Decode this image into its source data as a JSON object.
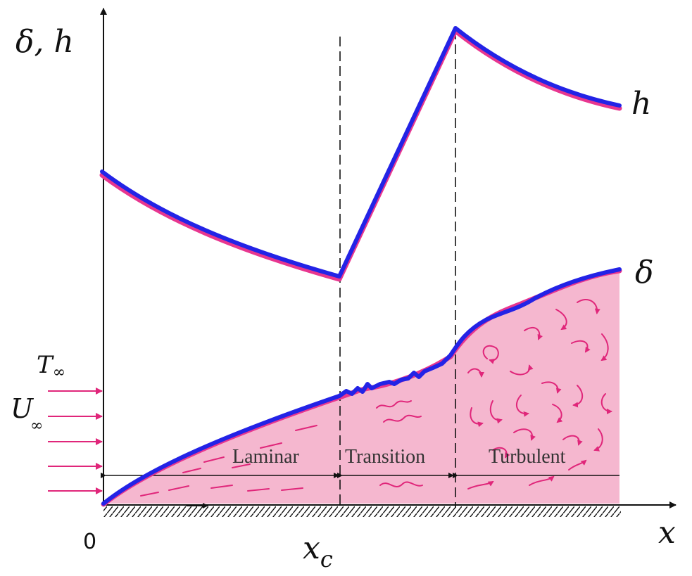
{
  "axes": {
    "y_label": "δ, h",
    "x_label": "x",
    "origin_label": "0",
    "critical_label": "x",
    "critical_subscript": "c"
  },
  "curves": {
    "h_label": "h",
    "delta_label": "δ"
  },
  "freestream": {
    "temperature_base": "T",
    "temperature_sub": "∞",
    "velocity_base": "U",
    "velocity_sub": "∞"
  },
  "regions": {
    "laminar": "Laminar",
    "transition": "Transition",
    "turbulent": "Turbulent"
  },
  "colors": {
    "curve": "#2323e6",
    "curve_shadow": "#e8368f",
    "boundary_fill": "#f5b7cf",
    "eddy": "#e0267a",
    "axis": "#111111"
  }
}
